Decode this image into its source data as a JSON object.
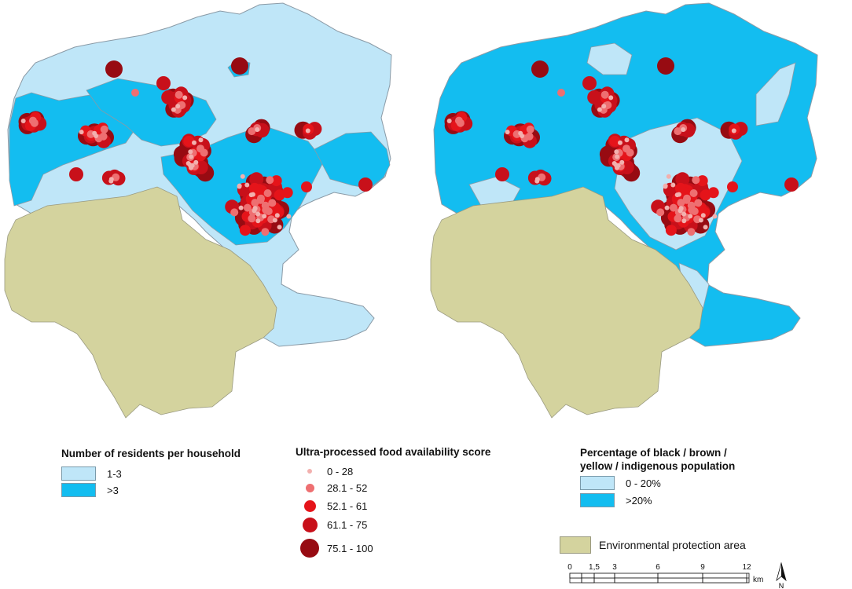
{
  "colors": {
    "light_blue": "#bfe6f8",
    "bright_blue": "#13bdf0",
    "protection": "#d4d39e",
    "boundary": "#8a9aa6",
    "dot_1": "#f2b0ae",
    "dot_2": "#ee6f71",
    "dot_3": "#e5141a",
    "dot_4": "#c8101a",
    "dot_5": "#970b12"
  },
  "legend_residents": {
    "title": "Number of residents per household",
    "items": [
      {
        "label": "1-3",
        "color": "#bfe6f8"
      },
      {
        "label": ">3",
        "color": "#13bdf0"
      }
    ]
  },
  "legend_score": {
    "title": "Ultra-processed food availability score",
    "items": [
      {
        "label": "0 - 28",
        "color": "#f2b0ae"
      },
      {
        "label": "28.1 - 52",
        "color": "#ee6f71"
      },
      {
        "label": "52.1 - 61",
        "color": "#e5141a"
      },
      {
        "label": "61.1 - 75",
        "color": "#c8101a"
      },
      {
        "label": "75.1 - 100",
        "color": "#970b12"
      }
    ]
  },
  "legend_race": {
    "title_line1": "Percentage of black / brown /",
    "title_line2": "yellow / indigenous population",
    "items": [
      {
        "label": "0 - 20%",
        "color": "#bfe6f8"
      },
      {
        "label": ">20%",
        "color": "#13bdf0"
      }
    ]
  },
  "legend_protection": {
    "label": "Environmental protection area",
    "color": "#d4d39e"
  },
  "scale": {
    "ticks": [
      "0",
      "1,5",
      "3",
      "6",
      "9",
      "12"
    ],
    "unit": "km",
    "north": "N"
  }
}
